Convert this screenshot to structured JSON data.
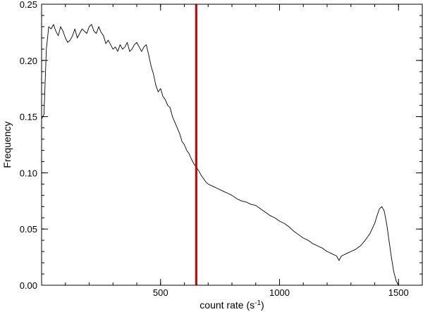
{
  "chart_data": {
    "type": "line",
    "title": "",
    "xlabel": "count rate (s",
    "xlabel_sup": "-1",
    "xlabel_suffix": ")",
    "ylabel": "Frequency",
    "xlim": [
      0,
      1600
    ],
    "ylim": [
      0,
      0.25
    ],
    "x_major_ticks": [
      500,
      1000,
      1500
    ],
    "x_minor_step": 100,
    "y_major_ticks": [
      0.0,
      0.05,
      0.1,
      0.15,
      0.2,
      0.25
    ],
    "y_minor_step": 0.01,
    "grid": false,
    "line_color": "#000000",
    "marker_color": "#cc0000",
    "marker_x": 650,
    "series": [
      {
        "x": [
          0,
          10,
          20,
          30,
          40,
          50,
          60,
          70,
          80,
          90,
          100,
          110,
          120,
          130,
          140,
          150,
          160,
          170,
          180,
          190,
          200,
          210,
          220,
          230,
          240,
          250,
          260,
          270,
          280,
          290,
          300,
          310,
          320,
          330,
          340,
          350,
          360,
          370,
          380,
          390,
          400,
          410,
          420,
          430,
          440,
          450,
          460,
          470,
          480,
          490,
          500,
          510,
          520,
          530,
          540,
          550,
          560,
          570,
          580,
          590,
          600,
          610,
          620,
          630,
          640,
          650,
          660,
          670,
          680,
          690,
          700,
          720,
          740,
          760,
          780,
          800,
          820,
          840,
          860,
          880,
          900,
          920,
          940,
          960,
          980,
          1000,
          1020,
          1040,
          1060,
          1080,
          1100,
          1120,
          1140,
          1160,
          1180,
          1200,
          1220,
          1240,
          1250,
          1260,
          1280,
          1300,
          1320,
          1340,
          1360,
          1380,
          1400,
          1410,
          1420,
          1430,
          1440,
          1450,
          1460,
          1470,
          1480,
          1490,
          1500
        ],
        "y": [
          0.148,
          0.152,
          0.21,
          0.23,
          0.228,
          0.232,
          0.226,
          0.222,
          0.23,
          0.226,
          0.22,
          0.216,
          0.218,
          0.222,
          0.228,
          0.22,
          0.224,
          0.228,
          0.226,
          0.224,
          0.23,
          0.232,
          0.226,
          0.224,
          0.23,
          0.225,
          0.222,
          0.215,
          0.218,
          0.214,
          0.21,
          0.212,
          0.208,
          0.214,
          0.21,
          0.212,
          0.216,
          0.208,
          0.21,
          0.214,
          0.216,
          0.212,
          0.208,
          0.212,
          0.214,
          0.205,
          0.195,
          0.188,
          0.178,
          0.172,
          0.175,
          0.168,
          0.165,
          0.16,
          0.158,
          0.15,
          0.145,
          0.14,
          0.135,
          0.128,
          0.125,
          0.12,
          0.117,
          0.112,
          0.108,
          0.105,
          0.102,
          0.098,
          0.095,
          0.092,
          0.09,
          0.088,
          0.086,
          0.084,
          0.082,
          0.08,
          0.077,
          0.075,
          0.074,
          0.072,
          0.071,
          0.068,
          0.065,
          0.062,
          0.06,
          0.057,
          0.055,
          0.052,
          0.048,
          0.045,
          0.042,
          0.04,
          0.037,
          0.035,
          0.033,
          0.03,
          0.028,
          0.026,
          0.022,
          0.026,
          0.028,
          0.03,
          0.032,
          0.035,
          0.04,
          0.046,
          0.055,
          0.062,
          0.068,
          0.07,
          0.066,
          0.055,
          0.04,
          0.025,
          0.012,
          0.004,
          0.0
        ]
      }
    ]
  }
}
